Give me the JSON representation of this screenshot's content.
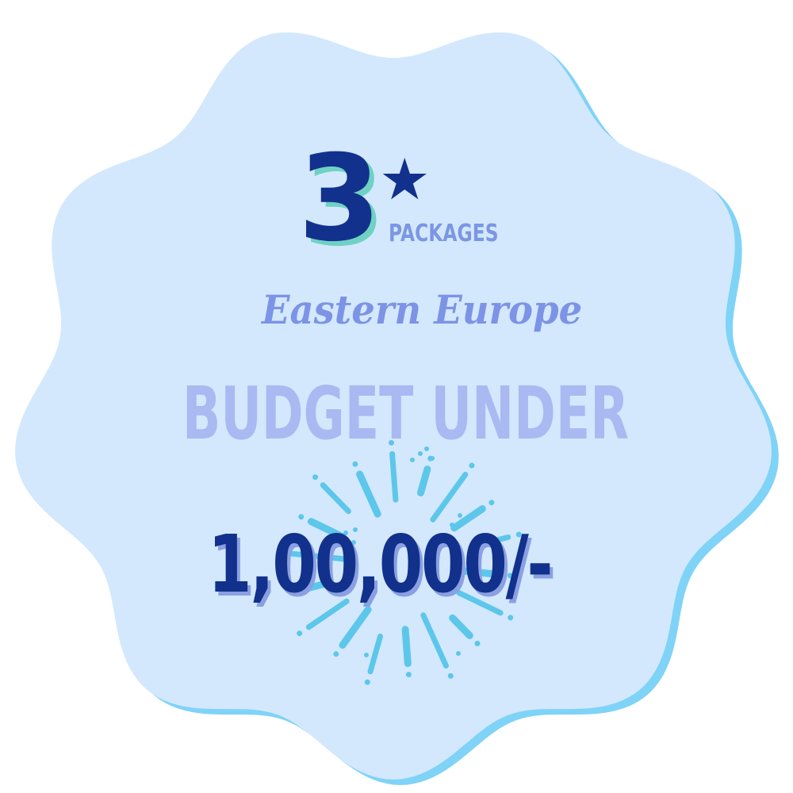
{
  "badge": {
    "fill_color": "#d3e8fd",
    "edge_color": "#7fd3f7",
    "rating_number": "3",
    "rating_star": "★",
    "packages_label": "PACKAGES",
    "region": "Eastern Europe",
    "budget_label": "BUDGET UNDER",
    "amount": "1,00,000/-"
  },
  "decorations": {
    "background_icon": "fireworks-icon",
    "firework_color": "#5cc7ea",
    "number_shadow_color": "#6fd1c4"
  }
}
